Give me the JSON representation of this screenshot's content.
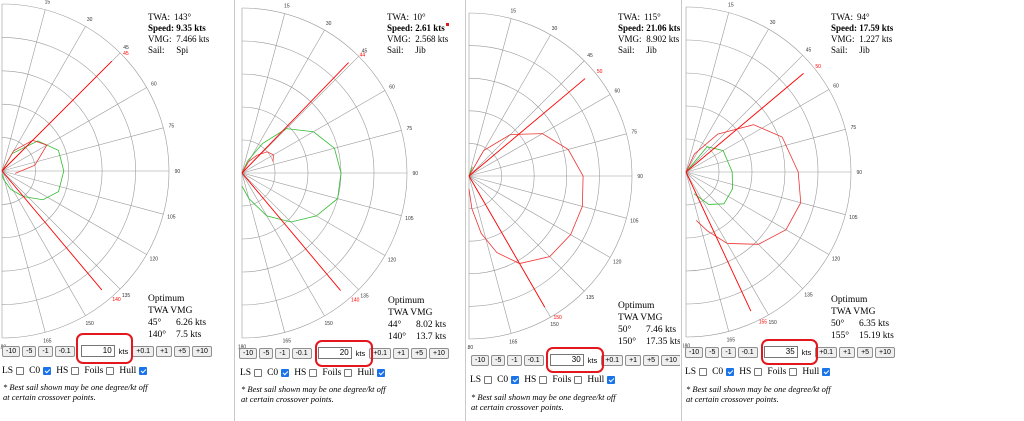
{
  "panels": [
    {
      "twa_label": "TWA:",
      "twa": "143°",
      "speed_label": "Speed:",
      "speed": "9.35 kts",
      "vmg_label": "VMG:",
      "vmg": "7.466 kts",
      "sail_label": "Sail:",
      "sail": "Spi",
      "opt_title": "Optimum",
      "opt_head": "TWA VMG",
      "opt_rows": [
        [
          "45°",
          "6.26 kts"
        ],
        [
          "140°",
          "7.5 kts"
        ]
      ],
      "wind_value": "10",
      "unit": "kts",
      "upwind_angle_label": "45",
      "downwind_angle_label": "140",
      "upwind_angle": 45,
      "downwind_angle": 140
    },
    {
      "twa_label": "TWA:",
      "twa": "10°",
      "speed_label": "Speed:",
      "speed": "2.61 kts",
      "vmg_label": "VMG:",
      "vmg": "2.568 kts",
      "sail_label": "Sail:",
      "sail": "Jib",
      "opt_title": "Optimum",
      "opt_head": "TWA VMG",
      "opt_rows": [
        [
          "44°",
          "8.02 kts"
        ],
        [
          "140°",
          "13.7 kts"
        ]
      ],
      "wind_value": "20",
      "unit": "kts",
      "upwind_angle_label": "44",
      "downwind_angle_label": "140",
      "upwind_angle": 44,
      "downwind_angle": 140
    },
    {
      "twa_label": "TWA:",
      "twa": "115°",
      "speed_label": "Speed:",
      "speed": "21.06 kts",
      "vmg_label": "VMG:",
      "vmg": "8.902 kts",
      "sail_label": "Sail:",
      "sail": "Jib",
      "opt_title": "Optimum",
      "opt_head": "TWA VMG",
      "opt_rows": [
        [
          "50°",
          "7.46 kts"
        ],
        [
          "150°",
          "17.35 kts"
        ]
      ],
      "wind_value": "30",
      "unit": "kts",
      "upwind_angle_label": "50",
      "downwind_angle_label": "150",
      "upwind_angle": 50,
      "downwind_angle": 150
    },
    {
      "twa_label": "TWA:",
      "twa": "94°",
      "speed_label": "Speed:",
      "speed": "17.59 kts",
      "vmg_label": "VMG:",
      "vmg": "1.227 kts",
      "sail_label": "Sail:",
      "sail": "Jib",
      "opt_title": "Optimum",
      "opt_head": "TWA VMG",
      "opt_rows": [
        [
          "50°",
          "6.35 kts"
        ],
        [
          "155°",
          "15.19 kts"
        ]
      ],
      "wind_value": "35",
      "unit": "kts",
      "upwind_angle_label": "50",
      "downwind_angle_label": "155",
      "upwind_angle": 50,
      "downwind_angle": 155
    }
  ],
  "angle_ticks": [
    "15",
    "30",
    "45",
    "60",
    "75",
    "90",
    "105",
    "120",
    "135",
    "150",
    "165",
    "180"
  ],
  "controls": {
    "minus": [
      "-10",
      "-5",
      "-1",
      "-0.1"
    ],
    "plus": [
      "+0.1",
      "+1",
      "+5",
      "+10"
    ]
  },
  "checkboxes": [
    {
      "label": "LS",
      "checked": false
    },
    {
      "label": "C0",
      "checked": true
    },
    {
      "label": "HS",
      "checked": false
    },
    {
      "label": "Foils",
      "checked": false
    },
    {
      "label": "Hull",
      "checked": true
    }
  ],
  "note_lines": [
    "* Best sail shown may be one degree/kt off",
    "at certain crossover points."
  ],
  "colors": {
    "highlight": "#e3171e",
    "optimum_line": "#ff0000",
    "jib_curve": "#33bb33",
    "spi_curve": "#ee3333",
    "grid": "#9a9a9a",
    "checkbox_on": "#1a73e8"
  }
}
